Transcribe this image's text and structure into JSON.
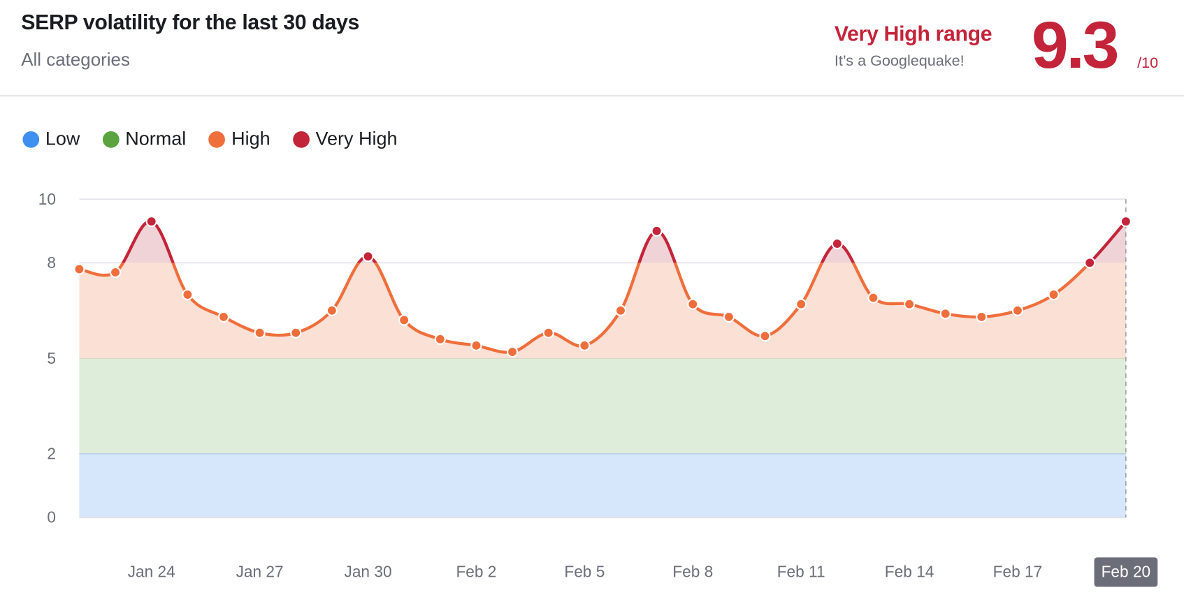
{
  "header": {
    "title": "SERP volatility for the last 30 days",
    "subtitle": "All categories",
    "range_label": "Very High range",
    "range_quip": "It’s a Googlequake!",
    "score": "9.3",
    "score_max": "/10"
  },
  "colors": {
    "low": "#3f8ff0",
    "normal": "#5aa33f",
    "high": "#ef6f3c",
    "very_high": "#c3243a"
  },
  "chart_data": {
    "type": "line",
    "title": "SERP volatility for the last 30 days",
    "legend": [
      {
        "name": "Low",
        "color": "#3f8ff0",
        "range": [
          0,
          2
        ]
      },
      {
        "name": "Normal",
        "color": "#5aa33f",
        "range": [
          2,
          5
        ]
      },
      {
        "name": "High",
        "color": "#ef6f3c",
        "range": [
          5,
          8
        ]
      },
      {
        "name": "Very High",
        "color": "#c3243a",
        "range": [
          8,
          10
        ]
      }
    ],
    "legend_placement": "top-left",
    "ylim": [
      0,
      10
    ],
    "yticks": [
      "0",
      "2",
      "5",
      "8",
      "10"
    ],
    "x": [
      "Jan 22",
      "Jan 23",
      "Jan 24",
      "Jan 25",
      "Jan 26",
      "Jan 27",
      "Jan 28",
      "Jan 29",
      "Jan 30",
      "Jan 31",
      "Feb 1",
      "Feb 2",
      "Feb 3",
      "Feb 4",
      "Feb 5",
      "Feb 6",
      "Feb 7",
      "Feb 8",
      "Feb 9",
      "Feb 10",
      "Feb 11",
      "Feb 12",
      "Feb 13",
      "Feb 14",
      "Feb 15",
      "Feb 16",
      "Feb 17",
      "Feb 18",
      "Feb 19",
      "Feb 20"
    ],
    "xtick_labels": [
      "Jan 24",
      "Jan 27",
      "Jan 30",
      "Feb 2",
      "Feb 5",
      "Feb 8",
      "Feb 11",
      "Feb 14",
      "Feb 17",
      "Feb 20"
    ],
    "highlighted_x": "Feb 20",
    "values": [
      7.8,
      7.7,
      9.3,
      7.0,
      6.3,
      5.8,
      5.8,
      6.5,
      8.2,
      6.2,
      5.6,
      5.4,
      5.2,
      5.8,
      5.4,
      6.5,
      9.0,
      6.7,
      6.3,
      5.7,
      6.7,
      8.6,
      6.9,
      6.7,
      6.4,
      6.3,
      6.5,
      7.0,
      8.0,
      9.3
    ]
  }
}
